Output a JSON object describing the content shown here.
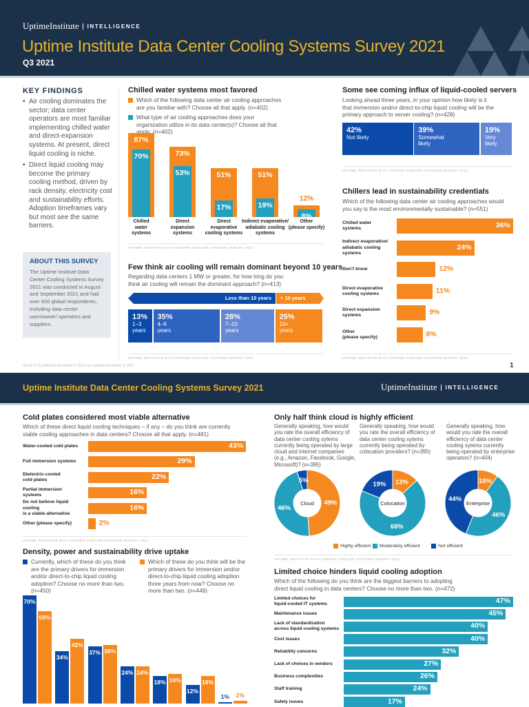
{
  "header": {
    "logo_name": "UptimeInstitute",
    "logo_sub": "INTELLIGENCE",
    "title": "Uptime Institute Data Center Cooling Systems Survey 2021",
    "quarter": "Q3 2021"
  },
  "key_findings": {
    "heading": "KEY FINDINGS",
    "bullets": [
      "Air cooling dominates the sector; data center operators are most familiar implementing chilled water and direct-expansion systems. At present, direct liquid cooling is niche.",
      "Direct liquid cooling may become the primary cooling method, driven by rack density, electricity cost and sustainability efforts. Adoption timeframes vary but most see the same barriers."
    ]
  },
  "about": {
    "heading": "ABOUT THIS SURVEY",
    "text": "The Uptime Institute Data Center Cooling Systems Survey 2021 was conducted in August and September 2021 and had over 600 global respondents, including data center user/owner/ operators and suppliers."
  },
  "source_label": "UPTIME INSTITUTE DATA CENTER COOLING SYSTEMS SURVEY 2021",
  "footer": {
    "published": "UII-56 V1.0 published December 3, 2021 last updated December 3, 2021",
    "page": "1"
  },
  "page2_header": {
    "title": "Uptime Institute Data Center Cooling Systems Survey 2021",
    "logo_name": "UptimeInstitute",
    "logo_sub": "INTELLIGENCE"
  },
  "colors": {
    "navy": "#1b3049",
    "title_yellow": "#e8b32a",
    "orange": "#f5891f",
    "teal": "#23a0bd",
    "dark_blue": "#0b4aa8",
    "mid_blue": "#2e63c0",
    "light_blue": "#6488d4",
    "accent_blue": "#1f4f8f"
  },
  "chart_data": [
    {
      "type": "bar",
      "title": "Chilled water systems most favored",
      "categories": [
        "Chilled\nwater\nsystems",
        "Direct\nexpansion\nsystems",
        "Direct\nevaporative\ncooling systems",
        "Indirect evaporative/\nadiabatic cooling\nsystems",
        "Other\n(please specify)"
      ],
      "series": [
        {
          "name": "Which of the following data center air cooling approaches are you familiar with? Choose all that apply. (n=402)",
          "color": "#f5891f",
          "values": [
            87,
            73,
            51,
            51,
            12
          ],
          "labels": [
            "87%",
            "73%",
            "51%",
            "51%",
            "12%"
          ]
        },
        {
          "name": "What type of air cooling approaches does your organization utilize in its data center(s)? Choose all that apply. (n=402)",
          "color": "#23a0bd",
          "values": [
            70,
            53,
            17,
            19,
            8
          ],
          "labels": [
            "70%",
            "53%",
            "17%",
            "19%",
            "8%"
          ]
        }
      ]
    },
    {
      "type": "bar",
      "stacked": true,
      "title": "Few think air cooling will remain dominant beyond 10 years",
      "subtitle": "Regarding data centers 1 MW or greater, for how long do you think air cooling will remain the dominant approach? (n=413)",
      "groups": [
        "Less than 10 years",
        "> 10 years"
      ],
      "segments": [
        {
          "value": 13,
          "pct": "13%",
          "label": "1–3\nyears",
          "color": "#0b4aa8"
        },
        {
          "value": 35,
          "pct": "35%",
          "label": "4–6\nyears",
          "color": "#2e63c0"
        },
        {
          "value": 28,
          "pct": "28%",
          "label": "7–10\nyears",
          "color": "#6488d4"
        },
        {
          "value": 25,
          "pct": "25%",
          "label": "10+\nyears",
          "color": "#f5891f"
        }
      ]
    },
    {
      "type": "bar",
      "stacked": true,
      "title": "Some see coming influx of liquid-cooled servers",
      "subtitle": "Looking ahead three years, in your opinion how likely is it that immersion and/or direct-to-chip liquid cooling will be the primary approach to server cooling? (n=428)",
      "segments": [
        {
          "value": 42,
          "pct": "42%",
          "label": "Not likely",
          "color": "#0b4aa8"
        },
        {
          "value": 39,
          "pct": "39%",
          "label": "Somewhat\nlikely",
          "color": "#2e63c0"
        },
        {
          "value": 19,
          "pct": "19%",
          "label": "Very\nlikely",
          "color": "#6488d4"
        }
      ]
    },
    {
      "type": "bar",
      "orientation": "horizontal",
      "title": "Chillers lead in sustainability credentials",
      "subtitle": "Which of the following data center air cooling approaches would you say is the most environmentally sustainable? (n=551)",
      "categories": [
        "Chilled water\nsystems",
        "Indirect evaporative/\nadiabatic cooling\nsystems",
        "Don't know",
        "Direct evaporative\ncooling systems",
        "Direct expansion\nsystems",
        "Other\n(please specify)"
      ],
      "values": [
        36,
        24,
        12,
        11,
        9,
        8
      ],
      "labels": [
        "36%",
        "24%",
        "12%",
        "11%",
        "9%",
        "8%"
      ],
      "color": "#f5891f"
    },
    {
      "type": "bar",
      "orientation": "horizontal",
      "title": "Cold plates considered most viable alternative",
      "subtitle": "Which of these direct liquid cooling techniques – if any – do you think are currently viable cooling approaches in data centers? Choose all that apply. (n=481)",
      "categories": [
        "Water-cooled cold plates",
        "Full immersion systems",
        "Dielectric-cooled\ncold plates",
        "Partial immersion\nsystems",
        "Do not believe liquid cooling\nis a viable alternative",
        "Other (please specify)"
      ],
      "values": [
        43,
        29,
        22,
        16,
        16,
        2
      ],
      "labels": [
        "43%",
        "29%",
        "22%",
        "16%",
        "16%",
        "2%"
      ],
      "color": "#f5891f"
    },
    {
      "type": "bar",
      "title": "Density, power and sustainability drive uptake",
      "series": [
        {
          "name": "Currently, which of these do you think are the primary drivers for immersion and/or direct-to-chip liquid cooling adoption? Choose no more than two. (n=450)",
          "color": "#0b4aa8",
          "values": [
            70,
            34,
            37,
            24,
            18,
            12,
            1
          ],
          "labels": [
            "70%",
            "34%",
            "37%",
            "24%",
            "18%",
            "12%",
            "1%"
          ]
        },
        {
          "name": "Which of these do you think will be the primary drivers for immersion and/or direct-to-chip liquid cooling adoption three years from now? Choose no more than two. (n=448)",
          "color": "#f5891f",
          "values": [
            60,
            42,
            38,
            24,
            19,
            18,
            2
          ],
          "labels": [
            "60%",
            "42%",
            "38%",
            "24%",
            "19%",
            "18%",
            "2%"
          ]
        }
      ]
    },
    {
      "type": "pie",
      "donut": true,
      "title": "Only half think cloud is highly efficient",
      "legend": [
        {
          "name": "Highly efficient",
          "color": "#f5891f"
        },
        {
          "name": "Moderately efficient",
          "color": "#23a0bd"
        },
        {
          "name": "Not efficient",
          "color": "#0b4aa8"
        }
      ],
      "pies": [
        {
          "center": "Cloud",
          "question": "Generally speaking, how would you rate the overall efficiency of data center cooling sytems currently being operated by large cloud and internet companies (e.g., Amazon, Facebook, Google, Microsoft)? (n=395)",
          "values": [
            49,
            46,
            5
          ],
          "labels": [
            "49%",
            "46%",
            "5%"
          ]
        },
        {
          "center": "Colocation",
          "question": "Generally speaking, how would you rate the overall efficiency of data center cooling sytems currently being operated by colocation providers? (n=395)",
          "values": [
            13,
            68,
            19
          ],
          "labels": [
            "13%",
            "68%",
            "19%"
          ]
        },
        {
          "center": "Enterprise",
          "question": "Generally speaking, how would you rate the overall efficiency of data center cooling sytems currently being operated by enterprise operators? (n=404)",
          "values": [
            10,
            46,
            44
          ],
          "labels": [
            "10%",
            "46%",
            "44%"
          ]
        }
      ]
    },
    {
      "type": "bar",
      "orientation": "horizontal",
      "title": "Limited choice hinders liquid cooling adoption",
      "subtitle": "Which of the following do you think are the biggest barriers to adopting direct liquid cooling in data centers? Choose no more than two. (n=472)",
      "categories": [
        "Limited choices for\nliquid-cooled IT systems",
        "Maintenance issues",
        "Lack of standardization\nacross liquid cooling systems",
        "Cost issues",
        "Reliability concerns",
        "Lack of choices in vendors",
        "Business complexities",
        "Staff training",
        "Safety issues"
      ],
      "values": [
        47,
        45,
        40,
        40,
        32,
        27,
        26,
        24,
        17
      ],
      "labels": [
        "47%",
        "45%",
        "40%",
        "40%",
        "32%",
        "27%",
        "26%",
        "24%",
        "17%"
      ],
      "color": "#23a0bd"
    }
  ]
}
